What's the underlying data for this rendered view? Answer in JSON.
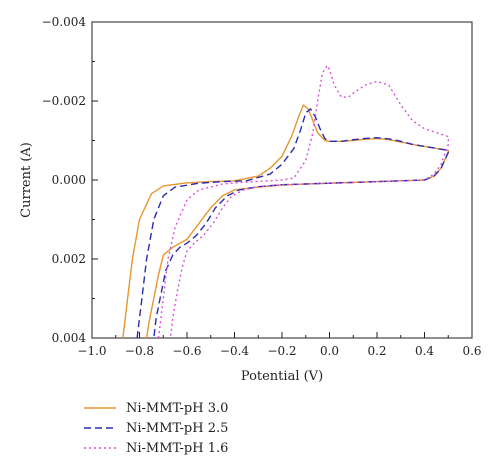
{
  "chart_data": {
    "type": "line",
    "title": "",
    "xlabel": "Potential (V)",
    "ylabel": "Current (A)",
    "xlim": [
      -1.0,
      0.6
    ],
    "ylim": [
      0.004,
      -0.004
    ],
    "y_axis_inverted": true,
    "x_ticks": [
      -1.0,
      -0.8,
      -0.6,
      -0.4,
      -0.2,
      0.0,
      0.2,
      0.4,
      0.6
    ],
    "x_tick_labels": [
      "−1.0",
      "−0.8",
      "−0.6",
      "−0.4",
      "−0.2",
      "0.0",
      "0.2",
      "0.4",
      "0.6"
    ],
    "y_ticks": [
      -0.004,
      -0.002,
      0.0,
      0.002,
      0.004
    ],
    "y_tick_labels": [
      "−0.004",
      "−0.002",
      "0.000",
      "0.002",
      "0.004"
    ],
    "grid": false,
    "legend_position": "below-left",
    "series": [
      {
        "name": "Ni-MMT-pH 3.0",
        "color": "#e8962e",
        "style": "solid",
        "x": [
          -0.87,
          -0.85,
          -0.83,
          -0.8,
          -0.75,
          -0.7,
          -0.6,
          -0.5,
          -0.4,
          -0.3,
          -0.25,
          -0.2,
          -0.16,
          -0.13,
          -0.11,
          -0.09,
          -0.07,
          -0.05,
          -0.02,
          0.0,
          0.05,
          0.1,
          0.15,
          0.2,
          0.25,
          0.3,
          0.35,
          0.4,
          0.45,
          0.5,
          0.5,
          0.47,
          0.44,
          0.4,
          0.3,
          0.2,
          0.1,
          0.0,
          -0.1,
          -0.2,
          -0.3,
          -0.4,
          -0.45,
          -0.5,
          -0.55,
          -0.6,
          -0.63,
          -0.66,
          -0.7,
          -0.72,
          -0.74,
          -0.76,
          -0.77
        ],
        "y": [
          0.004,
          0.003,
          0.002,
          0.001,
          0.00035,
          0.00015,
          7e-05,
          4e-05,
          2e-05,
          -0.0001,
          -0.0003,
          -0.0006,
          -0.0011,
          -0.0016,
          -0.0019,
          -0.0018,
          -0.0015,
          -0.0012,
          -0.001,
          -0.00098,
          -0.00098,
          -0.001,
          -0.00103,
          -0.00105,
          -0.00102,
          -0.00096,
          -0.0009,
          -0.00085,
          -0.0008,
          -0.00075,
          -0.0007,
          -0.0003,
          -0.0001,
          0.0,
          2e-05,
          4e-05,
          6e-05,
          8e-05,
          0.0001,
          0.00013,
          0.00018,
          0.00025,
          0.0004,
          0.0007,
          0.0011,
          0.0015,
          0.0016,
          0.0017,
          0.0019,
          0.0024,
          0.003,
          0.0036,
          0.004
        ]
      },
      {
        "name": "Ni-MMT-pH 2.5",
        "color": "#2b2bb0",
        "style": "dashed",
        "x": [
          -0.81,
          -0.79,
          -0.77,
          -0.74,
          -0.7,
          -0.65,
          -0.55,
          -0.45,
          -0.35,
          -0.25,
          -0.2,
          -0.15,
          -0.12,
          -0.1,
          -0.08,
          -0.06,
          -0.04,
          -0.02,
          0.0,
          0.05,
          0.1,
          0.15,
          0.2,
          0.25,
          0.3,
          0.35,
          0.4,
          0.45,
          0.5,
          0.5,
          0.47,
          0.44,
          0.4,
          0.3,
          0.2,
          0.1,
          0.0,
          -0.1,
          -0.2,
          -0.3,
          -0.38,
          -0.43,
          -0.48,
          -0.52,
          -0.56,
          -0.6,
          -0.63,
          -0.66,
          -0.69,
          -0.71,
          -0.73,
          -0.74
        ],
        "y": [
          0.004,
          0.003,
          0.002,
          0.001,
          0.0004,
          0.00018,
          8e-05,
          4e-05,
          2e-05,
          -0.00015,
          -0.0004,
          -0.0008,
          -0.0013,
          -0.0017,
          -0.0018,
          -0.0016,
          -0.0013,
          -0.00105,
          -0.00098,
          -0.00098,
          -0.00102,
          -0.00105,
          -0.00107,
          -0.00104,
          -0.00098,
          -0.0009,
          -0.00085,
          -0.0008,
          -0.00075,
          -0.0007,
          -0.0003,
          -0.0001,
          0.0,
          2e-05,
          4e-05,
          6e-05,
          8e-05,
          0.0001,
          0.00012,
          0.00017,
          0.00025,
          0.0004,
          0.0007,
          0.0011,
          0.0014,
          0.0016,
          0.0017,
          0.0019,
          0.0023,
          0.0029,
          0.0035,
          0.004
        ]
      },
      {
        "name": "Ni-MMT-pH 1.6",
        "color": "#d94fd9",
        "style": "dotted",
        "x": [
          -0.72,
          -0.7,
          -0.68,
          -0.65,
          -0.6,
          -0.55,
          -0.45,
          -0.35,
          -0.25,
          -0.2,
          -0.15,
          -0.1,
          -0.07,
          -0.05,
          -0.03,
          -0.01,
          0.0,
          0.02,
          0.05,
          0.08,
          0.1,
          0.15,
          0.2,
          0.25,
          0.3,
          0.35,
          0.4,
          0.45,
          0.5,
          0.5,
          0.47,
          0.44,
          0.4,
          0.3,
          0.2,
          0.1,
          0.0,
          -0.1,
          -0.2,
          -0.3,
          -0.36,
          -0.41,
          -0.45,
          -0.49,
          -0.53,
          -0.57,
          -0.6,
          -0.62,
          -0.64,
          -0.66,
          -0.67
        ],
        "y": [
          0.004,
          0.003,
          0.002,
          0.0012,
          0.0005,
          0.00025,
          0.0001,
          5e-05,
          2e-05,
          0.0,
          -5e-05,
          -0.0005,
          -0.0012,
          -0.002,
          -0.0027,
          -0.0029,
          -0.0028,
          -0.0024,
          -0.0021,
          -0.0021,
          -0.0022,
          -0.0024,
          -0.0025,
          -0.0024,
          -0.0019,
          -0.0015,
          -0.0013,
          -0.0012,
          -0.0011,
          -0.0009,
          -0.0004,
          -0.00015,
          0.0,
          2e-05,
          4e-05,
          6e-05,
          8e-05,
          0.0001,
          0.00012,
          0.00017,
          0.00025,
          0.0004,
          0.0007,
          0.0011,
          0.0014,
          0.0016,
          0.0018,
          0.0022,
          0.0028,
          0.0035,
          0.004
        ]
      }
    ]
  }
}
